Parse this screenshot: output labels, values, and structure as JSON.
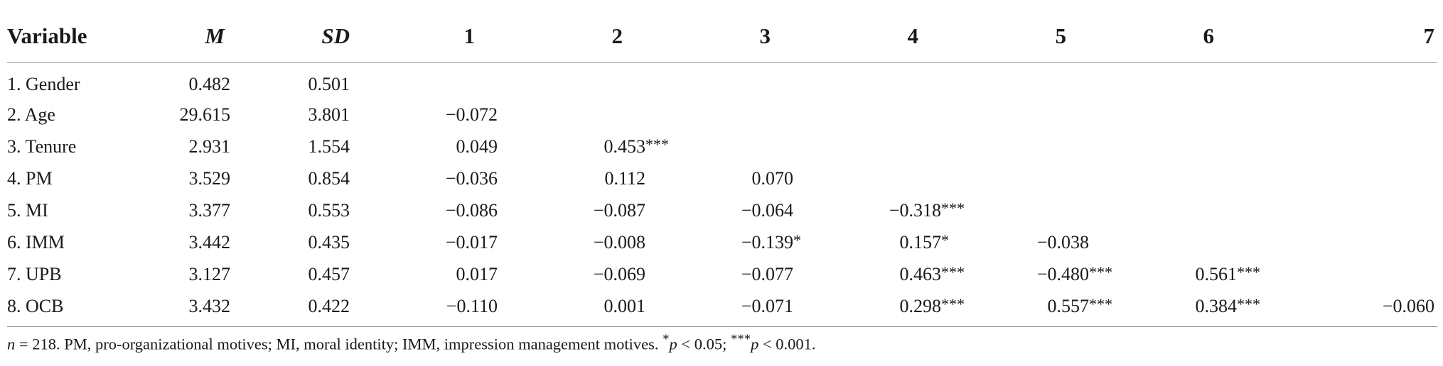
{
  "table": {
    "headers": [
      "Variable",
      "M",
      "SD",
      "1",
      "2",
      "3",
      "4",
      "5",
      "6",
      "7"
    ],
    "rows": [
      {
        "label": "1. Gender",
        "M": "0.482",
        "SD": "0.501",
        "c": [
          [
            "",
            ""
          ],
          [
            "",
            ""
          ],
          [
            "",
            ""
          ],
          [
            "",
            ""
          ],
          [
            "",
            ""
          ],
          [
            "",
            ""
          ],
          [
            "",
            ""
          ]
        ]
      },
      {
        "label": "2. Age",
        "M": "29.615",
        "SD": "3.801",
        "c": [
          [
            "−0.072",
            ""
          ],
          [
            "",
            ""
          ],
          [
            "",
            ""
          ],
          [
            "",
            ""
          ],
          [
            "",
            ""
          ],
          [
            "",
            ""
          ],
          [
            "",
            ""
          ]
        ]
      },
      {
        "label": "3. Tenure",
        "M": "2.931",
        "SD": "1.554",
        "c": [
          [
            "0.049",
            ""
          ],
          [
            "0.453",
            "***"
          ],
          [
            "",
            ""
          ],
          [
            "",
            ""
          ],
          [
            "",
            ""
          ],
          [
            "",
            ""
          ],
          [
            "",
            ""
          ]
        ]
      },
      {
        "label": "4. PM",
        "M": "3.529",
        "SD": "0.854",
        "c": [
          [
            "−0.036",
            ""
          ],
          [
            "0.112",
            ""
          ],
          [
            "0.070",
            ""
          ],
          [
            "",
            ""
          ],
          [
            "",
            ""
          ],
          [
            "",
            ""
          ],
          [
            "",
            ""
          ]
        ]
      },
      {
        "label": "5. MI",
        "M": "3.377",
        "SD": "0.553",
        "c": [
          [
            "−0.086",
            ""
          ],
          [
            "−0.087",
            ""
          ],
          [
            "−0.064",
            ""
          ],
          [
            "−0.318",
            "***"
          ],
          [
            "",
            ""
          ],
          [
            "",
            ""
          ],
          [
            "",
            ""
          ]
        ]
      },
      {
        "label": "6. IMM",
        "M": "3.442",
        "SD": "0.435",
        "c": [
          [
            "−0.017",
            ""
          ],
          [
            "−0.008",
            ""
          ],
          [
            "−0.139",
            "*"
          ],
          [
            "0.157",
            "*"
          ],
          [
            "−0.038",
            ""
          ],
          [
            "",
            ""
          ],
          [
            "",
            ""
          ]
        ]
      },
      {
        "label": "7. UPB",
        "M": "3.127",
        "SD": "0.457",
        "c": [
          [
            "0.017",
            ""
          ],
          [
            "−0.069",
            ""
          ],
          [
            "−0.077",
            ""
          ],
          [
            "0.463",
            "***"
          ],
          [
            "−0.480",
            "***"
          ],
          [
            "0.561",
            "***"
          ],
          [
            "",
            ""
          ]
        ]
      },
      {
        "label": "8. OCB",
        "M": "3.432",
        "SD": "0.422",
        "c": [
          [
            "−0.110",
            ""
          ],
          [
            "0.001",
            ""
          ],
          [
            "−0.071",
            ""
          ],
          [
            "0.298",
            "***"
          ],
          [
            "0.557",
            "***"
          ],
          [
            "0.384",
            "***"
          ],
          [
            "−0.060",
            ""
          ]
        ]
      }
    ]
  },
  "note": {
    "n_symbol": "n",
    "n_text": " = 218. PM, pro-organizational motives; MI, moral identity; IMM, impression management motives. ",
    "p1_star": "*",
    "p1_symbol": "p",
    "p1_text": " < 0.05; ",
    "p2_star": "***",
    "p2_symbol": "p",
    "p2_text": " < 0.001."
  }
}
